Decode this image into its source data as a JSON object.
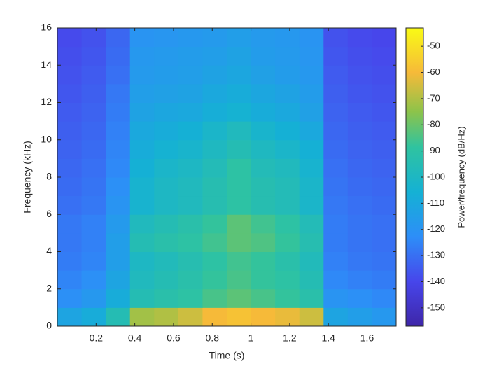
{
  "chart_data": {
    "type": "heatmap",
    "x_label": "Time (s)",
    "y_label": "Frequency (kHz)",
    "colorbar_label": "Power/frequency (dB/Hz)",
    "x": [
      0.0625,
      0.1875,
      0.3125,
      0.4375,
      0.5625,
      0.6875,
      0.8125,
      0.9375,
      1.0625,
      1.1875,
      1.3125,
      1.4375,
      1.5625,
      1.6875
    ],
    "y": [
      0.5,
      1.5,
      2.5,
      3.5,
      4.5,
      5.5,
      6.5,
      7.5,
      8.5,
      9.5,
      10.5,
      11.5,
      12.5,
      13.5,
      14.5,
      15.5
    ],
    "z": [
      [
        -112,
        -108,
        -95,
        -72,
        -70,
        -66,
        -60,
        -58,
        -60,
        -62,
        -66,
        -112,
        -115,
        -118
      ],
      [
        -122,
        -118,
        -108,
        -95,
        -92,
        -90,
        -85,
        -82,
        -85,
        -88,
        -92,
        -120,
        -122,
        -124
      ],
      [
        -125,
        -122,
        -112,
        -98,
        -95,
        -92,
        -88,
        -85,
        -88,
        -90,
        -95,
        -124,
        -126,
        -127
      ],
      [
        -127,
        -125,
        -115,
        -100,
        -97,
        -94,
        -90,
        -86,
        -88,
        -92,
        -97,
        -126,
        -128,
        -129
      ],
      [
        -128,
        -126,
        -115,
        -95,
        -92,
        -90,
        -86,
        -82,
        -84,
        -88,
        -94,
        -127,
        -129,
        -130
      ],
      [
        -128,
        -126,
        -117,
        -98,
        -95,
        -92,
        -88,
        -82,
        -86,
        -90,
        -96,
        -127,
        -129,
        -130
      ],
      [
        -130,
        -128,
        -120,
        -104,
        -100,
        -98,
        -94,
        -90,
        -94,
        -96,
        -102,
        -128,
        -130,
        -131
      ],
      [
        -131,
        -129,
        -122,
        -104,
        -100,
        -98,
        -94,
        -90,
        -94,
        -96,
        -102,
        -129,
        -131,
        -132
      ],
      [
        -132,
        -130,
        -124,
        -106,
        -102,
        -100,
        -96,
        -90,
        -96,
        -98,
        -104,
        -130,
        -132,
        -133
      ],
      [
        -133,
        -131,
        -125,
        -108,
        -105,
        -103,
        -99,
        -95,
        -99,
        -102,
        -106,
        -131,
        -133,
        -134
      ],
      [
        -134,
        -132,
        -126,
        -110,
        -108,
        -106,
        -102,
        -98,
        -103,
        -106,
        -110,
        -132,
        -134,
        -135
      ],
      [
        -135,
        -133,
        -127,
        -113,
        -111,
        -110,
        -107,
        -105,
        -108,
        -110,
        -114,
        -133,
        -135,
        -136
      ],
      [
        -136,
        -134,
        -128,
        -115,
        -114,
        -113,
        -110,
        -108,
        -111,
        -113,
        -116,
        -134,
        -136,
        -137
      ],
      [
        -137,
        -135,
        -130,
        -117,
        -116,
        -115,
        -113,
        -111,
        -114,
        -116,
        -118,
        -135,
        -137,
        -138
      ],
      [
        -138,
        -136,
        -131,
        -118,
        -117,
        -116,
        -115,
        -113,
        -116,
        -117,
        -119,
        -136,
        -138,
        -139
      ],
      [
        -139,
        -137,
        -132,
        -120,
        -119,
        -118,
        -117,
        -115,
        -117,
        -118,
        -120,
        -137,
        -139,
        -140
      ]
    ],
    "xlim": [
      0,
      1.75
    ],
    "xticks": [
      0.2,
      0.4,
      0.6,
      0.8,
      1,
      1.2,
      1.4,
      1.6
    ],
    "ylim": [
      0,
      16
    ],
    "yticks": [
      0,
      2,
      4,
      6,
      8,
      10,
      12,
      14,
      16
    ],
    "clim": [
      -157,
      -43
    ],
    "cticks": [
      -150,
      -140,
      -130,
      -120,
      -110,
      -100,
      -90,
      -80,
      -70,
      -60,
      -50
    ]
  }
}
